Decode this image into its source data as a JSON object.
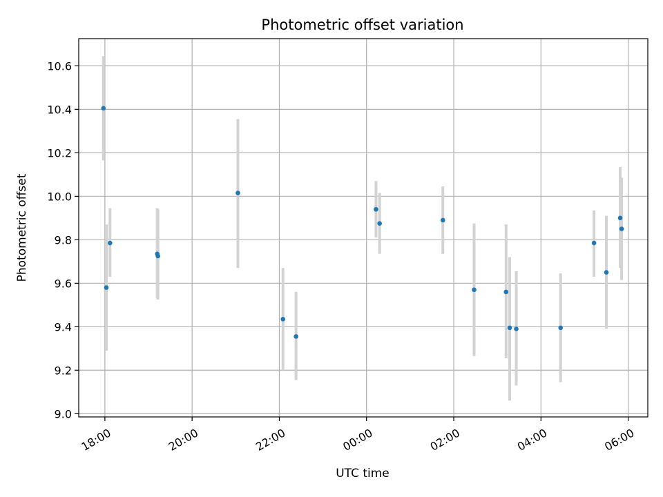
{
  "chart_data": {
    "type": "scatter",
    "title": "Photometric offset variation",
    "xlabel": "UTC time",
    "ylabel": "Photometric offset",
    "grid": true,
    "x_ticks": [
      "18:00",
      "20:00",
      "22:00",
      "00:00",
      "02:00",
      "04:00",
      "06:00"
    ],
    "y_ticks": [
      "9.0",
      "9.2",
      "9.4",
      "9.6",
      "9.8",
      "10.0",
      "10.2",
      "10.4",
      "10.6"
    ],
    "xlim_hours": [
      17.4,
      30.45
    ],
    "ylim": [
      8.985,
      10.725
    ],
    "colors": {
      "point": "#1f77b4",
      "errorbar": "#d3d3d3"
    },
    "points": [
      {
        "time": "17:58",
        "y": 10.405,
        "lo": 10.165,
        "hi": 10.645
      },
      {
        "time": "18:02",
        "y": 9.58,
        "lo": 9.29,
        "hi": 9.87
      },
      {
        "time": "18:07",
        "y": 9.785,
        "lo": 9.63,
        "hi": 9.945
      },
      {
        "time": "19:12",
        "y": 9.735,
        "lo": 9.53,
        "hi": 9.945
      },
      {
        "time": "19:13",
        "y": 9.725,
        "lo": 9.525,
        "hi": 9.94
      },
      {
        "time": "21:03",
        "y": 10.015,
        "lo": 9.67,
        "hi": 10.355
      },
      {
        "time": "22:05",
        "y": 9.435,
        "lo": 9.2,
        "hi": 9.67
      },
      {
        "time": "22:23",
        "y": 9.355,
        "lo": 9.155,
        "hi": 9.56
      },
      {
        "time": "00:13",
        "y": 9.94,
        "lo": 9.81,
        "hi": 10.07
      },
      {
        "time": "00:18",
        "y": 9.875,
        "lo": 9.735,
        "hi": 10.015
      },
      {
        "time": "01:45",
        "y": 9.89,
        "lo": 9.735,
        "hi": 10.045
      },
      {
        "time": "02:28",
        "y": 9.57,
        "lo": 9.265,
        "hi": 9.875
      },
      {
        "time": "03:12",
        "y": 9.56,
        "lo": 9.255,
        "hi": 9.87
      },
      {
        "time": "03:17",
        "y": 9.395,
        "lo": 9.06,
        "hi": 9.72
      },
      {
        "time": "03:26",
        "y": 9.39,
        "lo": 9.13,
        "hi": 9.655
      },
      {
        "time": "04:27",
        "y": 9.395,
        "lo": 9.145,
        "hi": 9.645
      },
      {
        "time": "05:13",
        "y": 9.785,
        "lo": 9.63,
        "hi": 9.935
      },
      {
        "time": "05:30",
        "y": 9.65,
        "lo": 9.39,
        "hi": 9.91
      },
      {
        "time": "05:49",
        "y": 9.9,
        "lo": 9.67,
        "hi": 10.135
      },
      {
        "time": "05:51",
        "y": 9.85,
        "lo": 9.615,
        "hi": 10.085
      }
    ]
  }
}
